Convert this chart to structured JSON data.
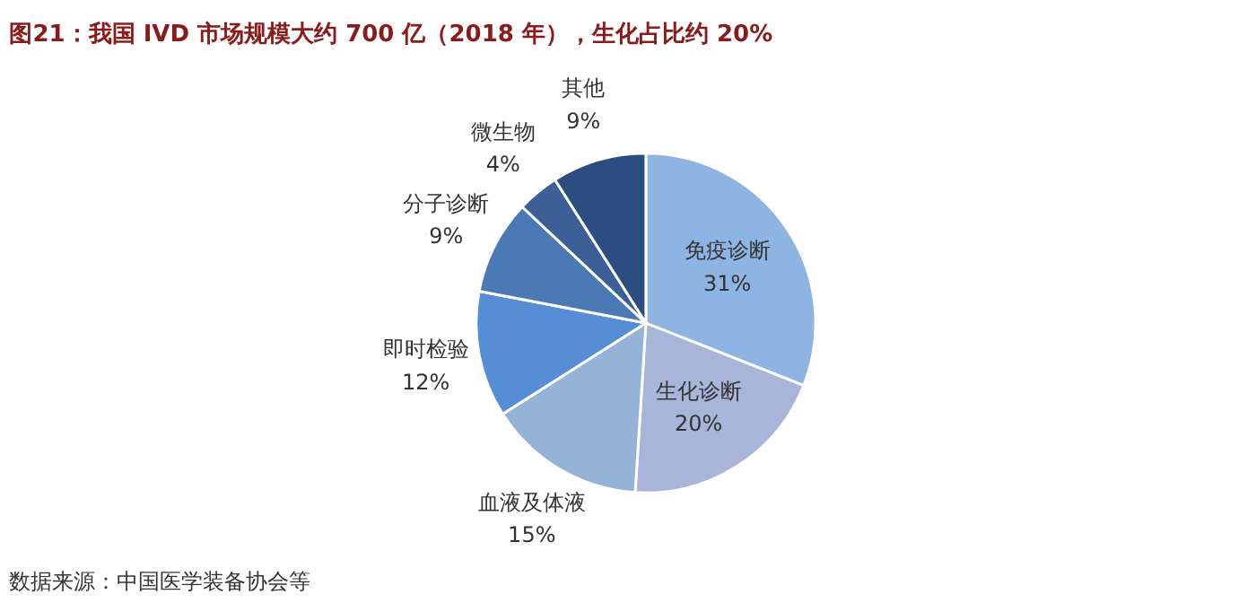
{
  "chart_data": {
    "type": "pie",
    "title": "图21：我国 IVD 市场规模大约 700 亿（2018 年），生化占比约 20%",
    "categories": [
      "免疫诊断",
      "生化诊断",
      "血液及体液",
      "即时检验",
      "分子诊断",
      "微生物",
      "其他"
    ],
    "values": [
      31,
      20,
      15,
      12,
      9,
      4,
      9
    ],
    "value_labels": [
      "31%",
      "20%",
      "15%",
      "12%",
      "9%",
      "4%",
      "9%"
    ],
    "colors": [
      "#8eb4e3",
      "#a8b4d8",
      "#95b3d7",
      "#558ed5",
      "#4a79b4",
      "#3b5f96",
      "#2c4d80"
    ],
    "annotations": [
      "数据来源：中国医学装备协会等"
    ]
  }
}
